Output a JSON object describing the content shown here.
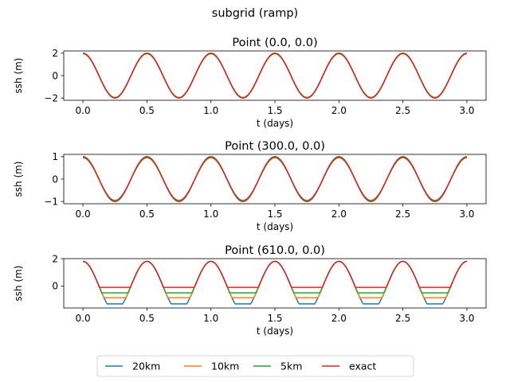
{
  "chart_data": {
    "type": "line",
    "suptitle": "subgrid (ramp)",
    "colors": {
      "20km": "#1f77b4",
      "10km": "#ff7f0e",
      "5km": "#2ca02c",
      "exact": "#d62728"
    },
    "legend": {
      "placement": "bottom-center",
      "entries": [
        "20km",
        "10km",
        "5km",
        "exact"
      ]
    },
    "x": {
      "range": [
        0.0,
        3.0
      ],
      "xlim": [
        -0.15,
        3.15
      ],
      "ticks": [
        "0.0",
        "0.5",
        "1.0",
        "1.5",
        "2.0",
        "2.5",
        "3.0"
      ],
      "tick_values": [
        0,
        0.5,
        1,
        1.5,
        2,
        2.5,
        3
      ]
    },
    "panels": [
      {
        "title": "Point (0.0, 0.0)",
        "xlabel": "t (days)",
        "ylabel": "ssh (m)",
        "ylim": [
          -2.2,
          2.2
        ],
        "yticks": [
          -2,
          0,
          2
        ],
        "yticklabels": [
          "−2",
          "0",
          "2"
        ],
        "series": [
          {
            "name": "20km",
            "amp": 1.95,
            "floor": null,
            "period": 0.5
          },
          {
            "name": "10km",
            "amp": 1.95,
            "floor": null,
            "period": 0.5
          },
          {
            "name": "5km",
            "amp": 1.96,
            "floor": null,
            "period": 0.5
          },
          {
            "name": "exact",
            "amp": 2.0,
            "floor": null,
            "period": 0.5
          }
        ]
      },
      {
        "title": "Point (300.0, 0.0)",
        "xlabel": "t (days)",
        "ylabel": "ssh (m)",
        "ylim": [
          -1.1,
          1.1
        ],
        "yticks": [
          -1,
          0,
          1
        ],
        "yticklabels": [
          "−1",
          "0",
          "1"
        ],
        "series": [
          {
            "name": "20km",
            "amp": 0.95,
            "floor": null,
            "period": 0.5
          },
          {
            "name": "10km",
            "amp": 0.95,
            "floor": null,
            "period": 0.5
          },
          {
            "name": "5km",
            "amp": 0.96,
            "floor": null,
            "period": 0.5
          },
          {
            "name": "exact",
            "amp": 1.0,
            "floor": null,
            "period": 0.5
          }
        ]
      },
      {
        "title": "Point (610.0, 0.0)",
        "xlabel": "t (days)",
        "ylabel": "ssh (m)",
        "ylim": [
          -1.6,
          2.0
        ],
        "yticks": [
          0,
          2
        ],
        "yticklabels": [
          "0",
          "2"
        ],
        "series": [
          {
            "name": "20km",
            "amp": 1.8,
            "floor": -1.3,
            "period": 0.5
          },
          {
            "name": "10km",
            "amp": 1.8,
            "floor": -0.85,
            "period": 0.5
          },
          {
            "name": "5km",
            "amp": 1.8,
            "floor": -0.5,
            "period": 0.5
          },
          {
            "name": "exact",
            "amp": 1.8,
            "floor": -0.1,
            "period": 0.5
          }
        ]
      }
    ]
  }
}
